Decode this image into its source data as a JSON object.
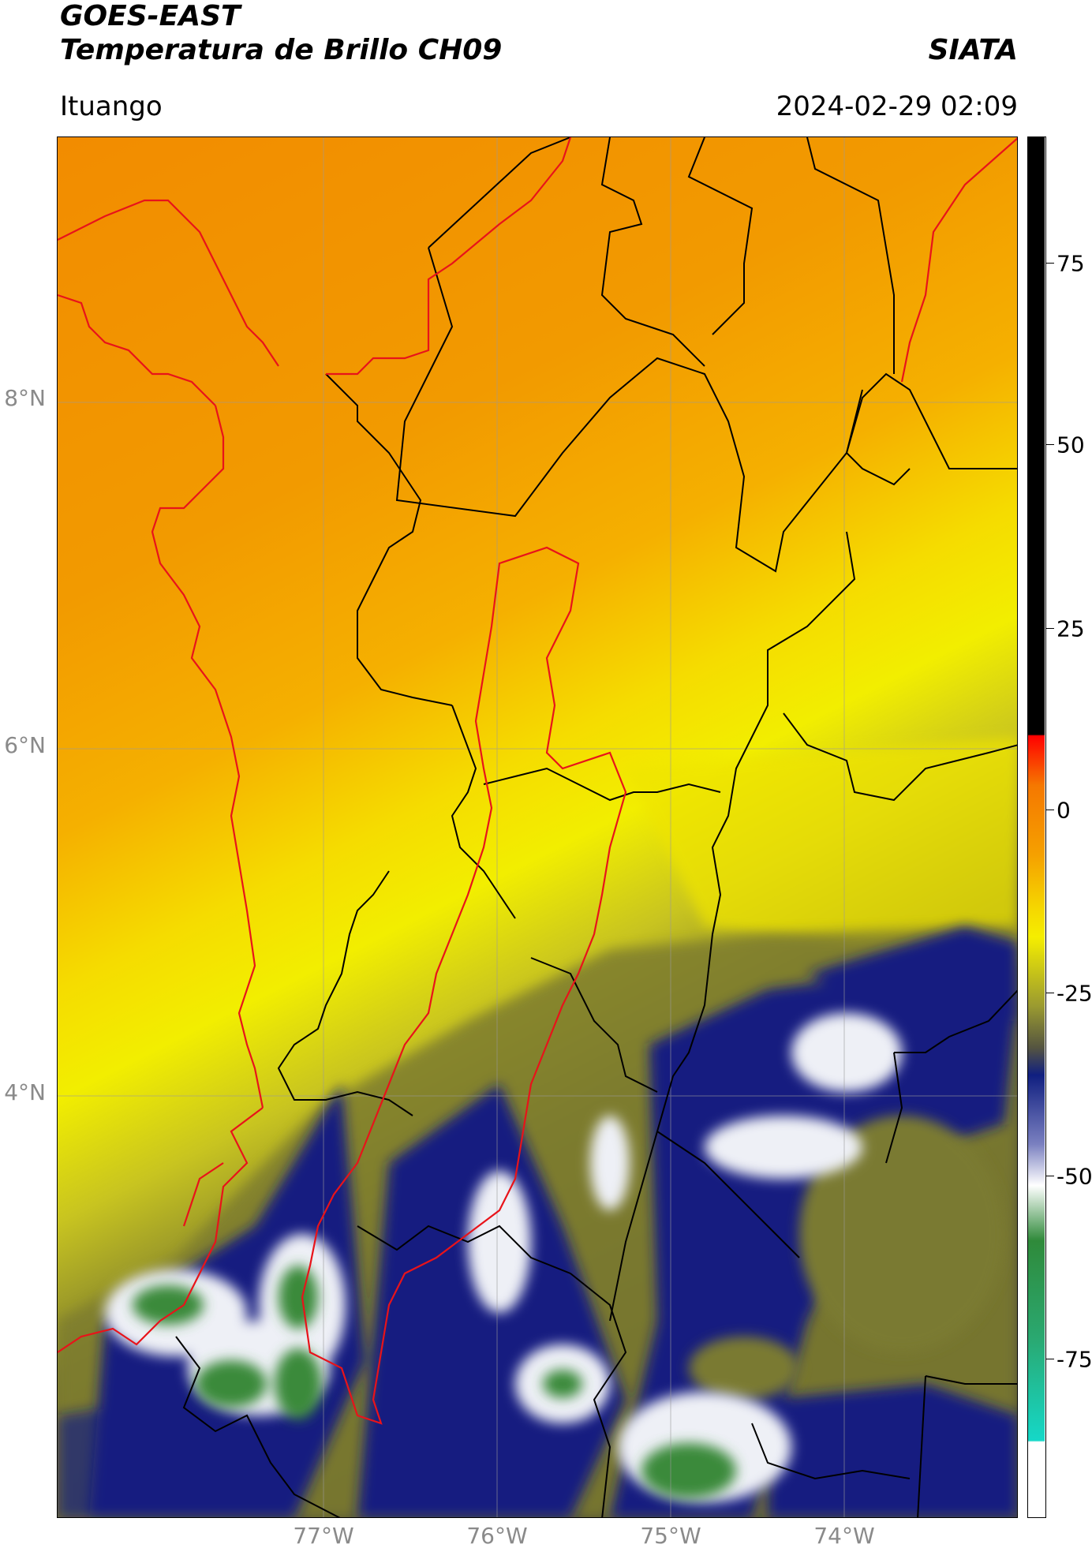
{
  "header": {
    "title_line1": "GOES-EAST",
    "title_line2": "Temperatura de Brillo CH09",
    "brand": "SIATA",
    "location": "Ituango",
    "timestamp": "2024-02-29 02:09"
  },
  "map": {
    "lat_labels": [
      "8°N",
      "6°N",
      "4°N"
    ],
    "lon_labels": [
      "77°W",
      "76°W",
      "75°W",
      "74°W"
    ],
    "colors": {
      "orange": "#f29200",
      "yellow": "#f5ee00",
      "olive": "#7a7a30",
      "navy": "#121f7e",
      "white": "#f2f2f6",
      "green": "#3a8a3a",
      "border_red": "#e8131a",
      "border_black": "#000000"
    }
  },
  "colorbar": {
    "tick_labels": [
      "75",
      "50",
      "25",
      "0",
      "-25",
      "-50",
      "-75"
    ],
    "colors": [
      "#000000",
      "#ff0000",
      "#f29200",
      "#f5ee00",
      "#6b6b2e",
      "#101f80",
      "#ffffff",
      "#2f8a3a",
      "#15d8c8"
    ]
  }
}
